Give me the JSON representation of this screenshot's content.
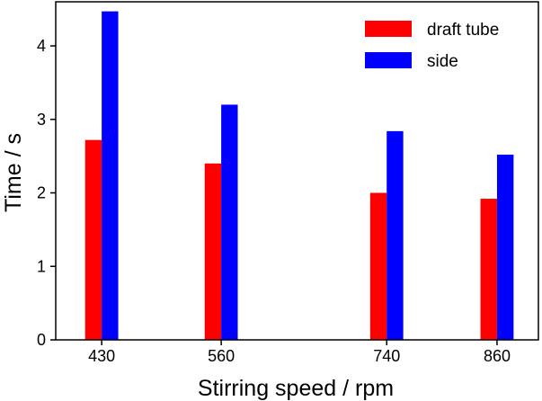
{
  "chart_data": {
    "type": "bar",
    "title": "",
    "xlabel": "Stirring speed / rpm",
    "ylabel": "Time / s",
    "x": [
      430,
      560,
      740,
      860
    ],
    "x_tick_labels": [
      "430",
      "560",
      "740",
      "860"
    ],
    "xlim": [
      380,
      905
    ],
    "ylim": [
      0,
      4.6
    ],
    "y_ticks": [
      0,
      1,
      2,
      3,
      4
    ],
    "y_tick_labels": [
      "0",
      "1",
      "2",
      "3",
      "4"
    ],
    "bar_width_rpm": 18,
    "grid": false,
    "legend_position": "top-right",
    "series": [
      {
        "name": "draft tube",
        "color": "#ff0000",
        "values": [
          2.72,
          2.4,
          2.0,
          1.92
        ]
      },
      {
        "name": "side",
        "color": "#0000ff",
        "values": [
          4.47,
          3.2,
          2.84,
          2.52
        ]
      }
    ]
  }
}
